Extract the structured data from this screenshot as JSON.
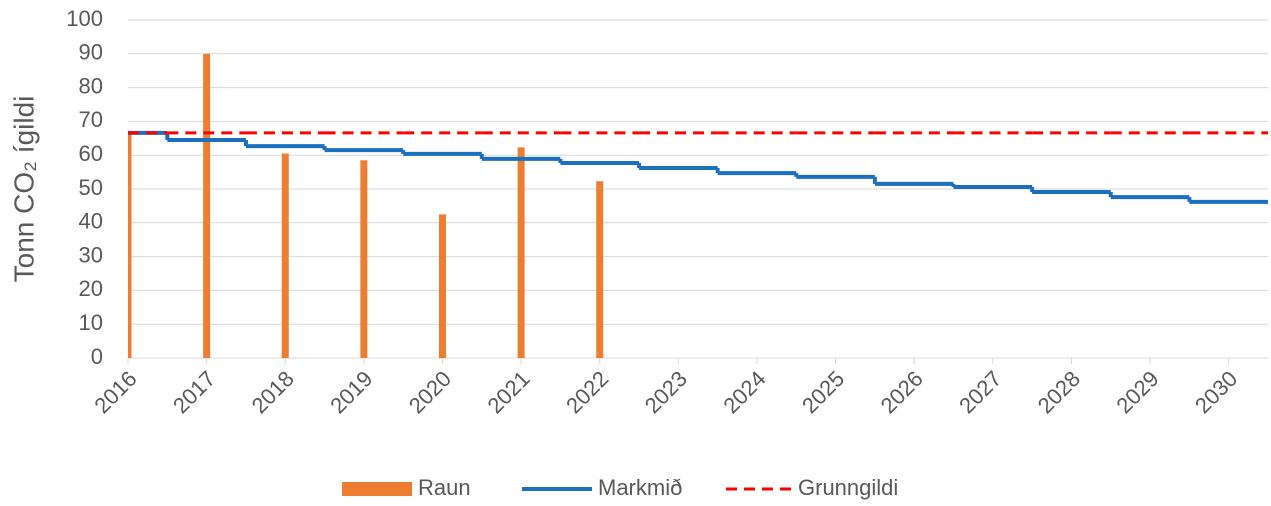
{
  "chart_data": {
    "type": "bar",
    "y_label": "Tonn CO₂ ígildi",
    "categories": [
      "2016",
      "2017",
      "2018",
      "2019",
      "2020",
      "2021",
      "2022",
      "2023",
      "2024",
      "2025",
      "2026",
      "2027",
      "2028",
      "2029",
      "2030"
    ],
    "ylim": [
      0,
      100
    ],
    "yticks": [
      0,
      10,
      20,
      30,
      40,
      50,
      60,
      70,
      80,
      90,
      100
    ],
    "grid": true,
    "legend": "bottom",
    "series": [
      {
        "name": "Raun",
        "type": "bar",
        "color": "#ed7d31",
        "values": [
          67,
          90,
          60.5,
          58.5,
          42.5,
          62.3,
          52.3,
          null,
          null,
          null,
          null,
          null,
          null,
          null,
          null
        ]
      },
      {
        "name": "Markmið",
        "type": "step",
        "color": "#1a6fbf",
        "values": [
          66.6,
          64.5,
          62.7,
          61.5,
          60.4,
          58.9,
          57.7,
          56.2,
          54.7,
          53.6,
          51.5,
          50.6,
          49.1,
          47.6,
          46.2
        ]
      },
      {
        "name": "Grunngildi",
        "type": "step",
        "dashed": true,
        "color": "#ff0000",
        "values": [
          66.6,
          66.6,
          66.6,
          66.6,
          66.6,
          66.6,
          66.6,
          66.6,
          66.6,
          66.6,
          66.6,
          66.6,
          66.6,
          66.6,
          66.6
        ]
      }
    ]
  }
}
